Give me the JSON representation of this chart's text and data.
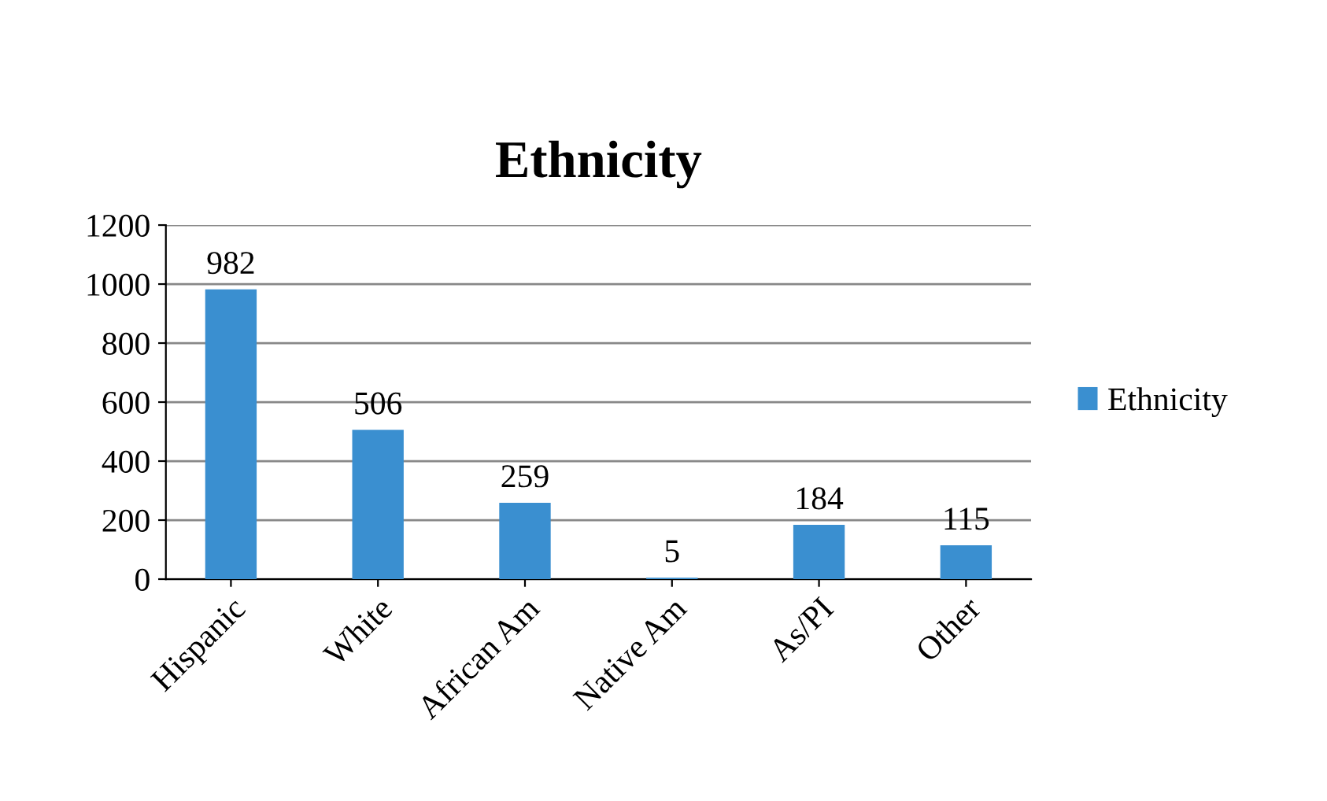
{
  "chart_data": {
    "type": "bar",
    "title": "Ethnicity",
    "categories": [
      "Hispanic",
      "White",
      "African Am",
      "Native Am",
      "As/PI",
      "Other"
    ],
    "series": [
      {
        "name": "Ethnicity",
        "color": "#3a8fd0",
        "values": [
          982,
          506,
          259,
          5,
          184,
          115
        ]
      }
    ],
    "ylim": [
      0,
      1200
    ],
    "yticks": [
      0,
      200,
      400,
      600,
      800,
      1000,
      1200
    ],
    "grid": "y",
    "legend": "right",
    "data_labels": true
  }
}
